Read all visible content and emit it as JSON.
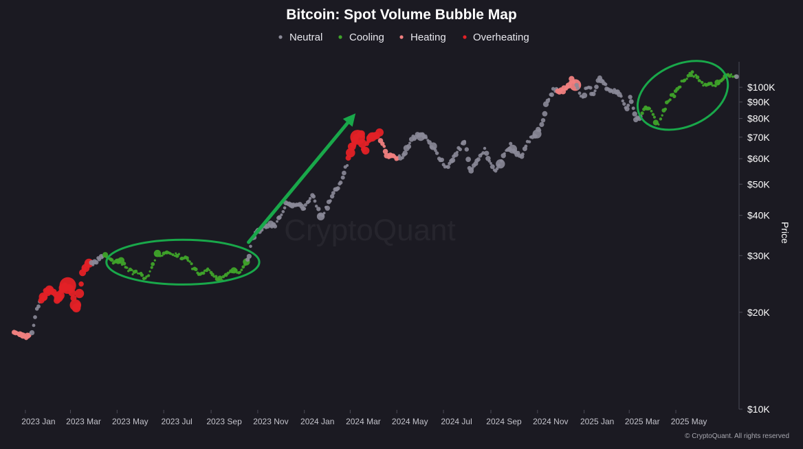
{
  "colors": {
    "background": "#1b1a22",
    "neutral": "#8b8a98",
    "cooling": "#3fa32a",
    "heating": "#f08080",
    "overheating": "#e32126",
    "annotation": "#19a84a",
    "axis": "#4a4a55"
  },
  "chart_data": {
    "type": "scatter",
    "title": "Bitcoin: Spot Volume Bubble Map",
    "ylabel": "Price",
    "yscale": "log",
    "ylim": [
      10000,
      120000
    ],
    "xlim": [
      "2022-12-15",
      "2025-07-20"
    ],
    "grid": false,
    "legend_position": "top-center",
    "legend": [
      {
        "name": "Neutral",
        "key": "neutral"
      },
      {
        "name": "Cooling",
        "key": "cooling"
      },
      {
        "name": "Heating",
        "key": "heating"
      },
      {
        "name": "Overheating",
        "key": "overheating"
      }
    ],
    "y_ticks": [
      {
        "value": 10000,
        "label": "$10K"
      },
      {
        "value": 20000,
        "label": "$20K"
      },
      {
        "value": 30000,
        "label": "$30K"
      },
      {
        "value": 40000,
        "label": "$40K"
      },
      {
        "value": 50000,
        "label": "$50K"
      },
      {
        "value": 60000,
        "label": "$60K"
      },
      {
        "value": 70000,
        "label": "$70K"
      },
      {
        "value": 80000,
        "label": "$80K"
      },
      {
        "value": 90000,
        "label": "$90K"
      },
      {
        "value": 100000,
        "label": "$100K"
      }
    ],
    "x_ticks": [
      {
        "date": "2023-01-01",
        "label": "2023 Jan"
      },
      {
        "date": "2023-03-01",
        "label": "2023 Mar"
      },
      {
        "date": "2023-05-01",
        "label": "2023 May"
      },
      {
        "date": "2023-07-01",
        "label": "2023 Jul"
      },
      {
        "date": "2023-09-01",
        "label": "2023 Sep"
      },
      {
        "date": "2023-11-01",
        "label": "2023 Nov"
      },
      {
        "date": "2024-01-01",
        "label": "2024 Jan"
      },
      {
        "date": "2024-03-01",
        "label": "2024 Mar"
      },
      {
        "date": "2024-05-01",
        "label": "2024 May"
      },
      {
        "date": "2024-07-01",
        "label": "2024 Jul"
      },
      {
        "date": "2024-09-01",
        "label": "2024 Sep"
      },
      {
        "date": "2024-11-01",
        "label": "2024 Nov"
      },
      {
        "date": "2025-01-01",
        "label": "2025 Jan"
      },
      {
        "date": "2025-03-01",
        "label": "2025 Mar"
      },
      {
        "date": "2025-05-01",
        "label": "2025 May"
      }
    ],
    "price_path": [
      [
        "2022-12-15",
        17300
      ],
      [
        "2023-01-01",
        16600
      ],
      [
        "2023-01-10",
        17200
      ],
      [
        "2023-01-15",
        20000
      ],
      [
        "2023-01-20",
        21300
      ],
      [
        "2023-01-28",
        23000
      ],
      [
        "2023-02-05",
        23400
      ],
      [
        "2023-02-12",
        21800
      ],
      [
        "2023-02-20",
        24500
      ],
      [
        "2023-03-01",
        23500
      ],
      [
        "2023-03-10",
        20200
      ],
      [
        "2023-03-17",
        26500
      ],
      [
        "2023-03-22",
        28000
      ],
      [
        "2023-04-01",
        28500
      ],
      [
        "2023-04-10",
        29500
      ],
      [
        "2023-04-15",
        30300
      ],
      [
        "2023-04-25",
        28500
      ],
      [
        "2023-05-05",
        29000
      ],
      [
        "2023-05-15",
        27000
      ],
      [
        "2023-05-25",
        26500
      ],
      [
        "2023-06-10",
        25500
      ],
      [
        "2023-06-22",
        30000
      ],
      [
        "2023-07-01",
        30500
      ],
      [
        "2023-07-15",
        30300
      ],
      [
        "2023-07-31",
        29200
      ],
      [
        "2023-08-17",
        26000
      ],
      [
        "2023-08-29",
        27500
      ],
      [
        "2023-09-11",
        25000
      ],
      [
        "2023-09-25",
        26500
      ],
      [
        "2023-10-10",
        27000
      ],
      [
        "2023-10-20",
        29500
      ],
      [
        "2023-10-26",
        34500
      ],
      [
        "2023-11-10",
        37000
      ],
      [
        "2023-11-25",
        37500
      ],
      [
        "2023-12-08",
        43500
      ],
      [
        "2023-12-20",
        43000
      ],
      [
        "2024-01-01",
        42500
      ],
      [
        "2024-01-11",
        46500
      ],
      [
        "2024-01-23",
        39500
      ],
      [
        "2024-02-01",
        43000
      ],
      [
        "2024-02-10",
        47500
      ],
      [
        "2024-02-20",
        52000
      ],
      [
        "2024-02-28",
        60000
      ],
      [
        "2024-03-05",
        67000
      ],
      [
        "2024-03-14",
        73000
      ],
      [
        "2024-03-20",
        63000
      ],
      [
        "2024-03-27",
        70000
      ],
      [
        "2024-04-08",
        71500
      ],
      [
        "2024-04-17",
        61500
      ],
      [
        "2024-04-30",
        60500
      ],
      [
        "2024-05-10",
        61500
      ],
      [
        "2024-05-21",
        70000
      ],
      [
        "2024-06-07",
        71000
      ],
      [
        "2024-06-24",
        61000
      ],
      [
        "2024-07-05",
        56000
      ],
      [
        "2024-07-14",
        60500
      ],
      [
        "2024-07-29",
        68000
      ],
      [
        "2024-08-05",
        54000
      ],
      [
        "2024-08-24",
        64000
      ],
      [
        "2024-09-06",
        54000
      ],
      [
        "2024-09-20",
        63000
      ],
      [
        "2024-09-27",
        66000
      ],
      [
        "2024-10-10",
        60500
      ],
      [
        "2024-10-20",
        68000
      ],
      [
        "2024-10-31",
        72000
      ],
      [
        "2024-11-06",
        75500
      ],
      [
        "2024-11-13",
        90000
      ],
      [
        "2024-11-22",
        98000
      ],
      [
        "2024-12-05",
        98000
      ],
      [
        "2024-12-17",
        106000
      ],
      [
        "2024-12-30",
        92500
      ],
      [
        "2025-01-06",
        102000
      ],
      [
        "2025-01-13",
        94500
      ],
      [
        "2025-01-20",
        106000
      ],
      [
        "2025-02-03",
        98000
      ],
      [
        "2025-02-14",
        97000
      ],
      [
        "2025-02-27",
        84500
      ],
      [
        "2025-03-02",
        94000
      ],
      [
        "2025-03-10",
        78500
      ],
      [
        "2025-03-25",
        87500
      ],
      [
        "2025-04-08",
        76500
      ],
      [
        "2025-04-22",
        92000
      ],
      [
        "2025-05-01",
        96000
      ],
      [
        "2025-05-10",
        104000
      ],
      [
        "2025-05-22",
        111000
      ],
      [
        "2025-06-05",
        103000
      ],
      [
        "2025-06-22",
        101000
      ],
      [
        "2025-07-06",
        109000
      ]
    ],
    "segments": [
      {
        "from": "2022-12-15",
        "to": "2023-01-08",
        "category": "heating"
      },
      {
        "from": "2023-01-08",
        "to": "2023-01-22",
        "category": "neutral"
      },
      {
        "from": "2023-01-22",
        "to": "2023-03-17",
        "category": "overheating"
      },
      {
        "from": "2023-03-17",
        "to": "2023-03-28",
        "category": "overheating"
      },
      {
        "from": "2023-03-28",
        "to": "2023-04-14",
        "category": "neutral"
      },
      {
        "from": "2023-04-14",
        "to": "2023-10-18",
        "category": "cooling"
      },
      {
        "from": "2023-10-18",
        "to": "2024-02-27",
        "category": "neutral"
      },
      {
        "from": "2024-02-27",
        "to": "2024-04-10",
        "category": "overheating"
      },
      {
        "from": "2024-04-10",
        "to": "2024-05-03",
        "category": "heating"
      },
      {
        "from": "2024-05-03",
        "to": "2024-11-28",
        "category": "neutral"
      },
      {
        "from": "2024-11-28",
        "to": "2024-12-22",
        "category": "heating"
      },
      {
        "from": "2024-12-22",
        "to": "2025-03-18",
        "category": "neutral"
      },
      {
        "from": "2025-03-18",
        "to": "2025-07-20",
        "category": "cooling"
      }
    ],
    "annotations": {
      "ellipses": [
        {
          "x_center": "2023-07-26",
          "y_center": 28000,
          "x_halfwidth_days": 100,
          "y_low": 24400,
          "y_high": 33600
        },
        {
          "x_center": "2025-05-10",
          "y_center": 94000,
          "x_halfwidth_days": 62,
          "y_low": 75500,
          "y_high": 118000
        }
      ],
      "arrow": {
        "from": [
          "2023-10-20",
          33000
        ],
        "to": [
          "2024-03-08",
          83000
        ]
      }
    },
    "watermark": "CryptoQuant",
    "copyright": "© CryptoQuant. All rights reserved"
  }
}
